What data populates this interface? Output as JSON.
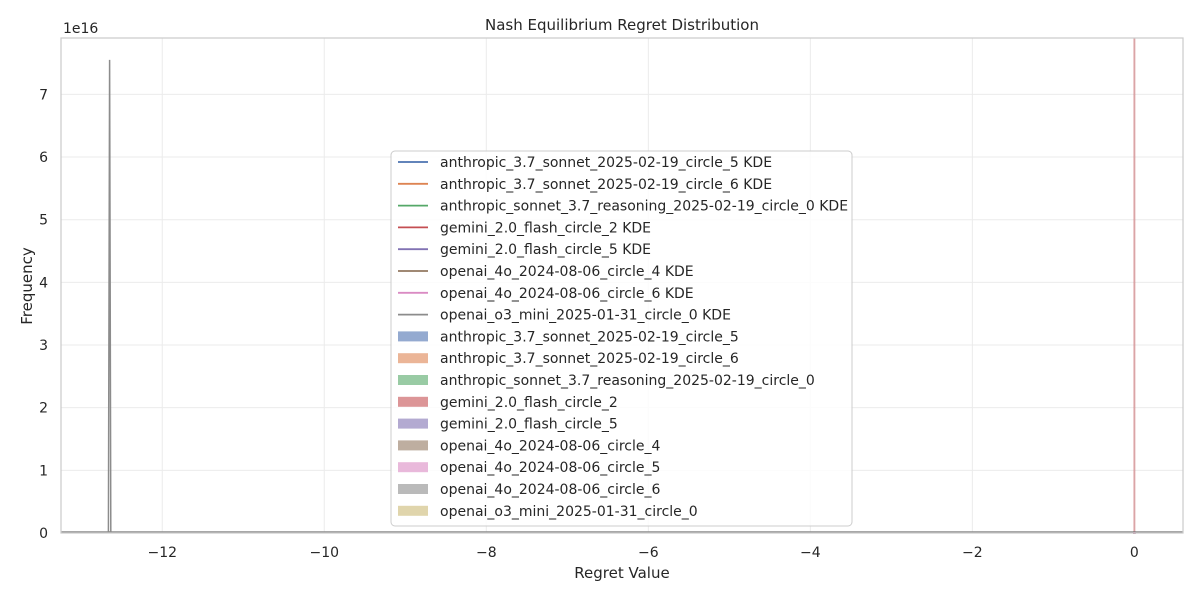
{
  "chart_data": {
    "type": "histogram",
    "title": "Nash Equilibrium Regret Distribution",
    "xlabel": "Regret Value",
    "ylabel": "Frequency",
    "offset_text": "1e16",
    "xlim": [
      -13.25,
      0.6
    ],
    "ylim": [
      0,
      7.9
    ],
    "y_scale_exponent": 16,
    "x_ticks": [
      -12,
      -10,
      -8,
      -6,
      -4,
      -2,
      0
    ],
    "x_tick_labels": [
      "−12",
      "−10",
      "−8",
      "−6",
      "−4",
      "−2",
      "0"
    ],
    "y_ticks": [
      0,
      1,
      2,
      3,
      4,
      5,
      6,
      7
    ],
    "y_tick_labels": [
      "0",
      "1",
      "2",
      "3",
      "4",
      "5",
      "6",
      "7"
    ],
    "grid": true,
    "legend_location": "center",
    "kde_series": [
      {
        "name": "anthropic_3.7_sonnet_2025-02-19_circle_5 KDE",
        "color": "#4c72b0",
        "peak_x": 0,
        "peak_y": 0
      },
      {
        "name": "anthropic_3.7_sonnet_2025-02-19_circle_6 KDE",
        "color": "#dd8452",
        "peak_x": 0,
        "peak_y": 0
      },
      {
        "name": "anthropic_sonnet_3.7_reasoning_2025-02-19_circle_0 KDE",
        "color": "#55a868",
        "peak_x": 0,
        "peak_y": 0
      },
      {
        "name": "gemini_2.0_flash_circle_2 KDE",
        "color": "#c44e52",
        "peak_x": 0,
        "peak_y": 0
      },
      {
        "name": "gemini_2.0_flash_circle_5 KDE",
        "color": "#8172b3",
        "peak_x": 0,
        "peak_y": 0
      },
      {
        "name": "openai_4o_2024-08-06_circle_4 KDE",
        "color": "#937860",
        "peak_x": 0,
        "peak_y": 0
      },
      {
        "name": "openai_4o_2024-08-06_circle_6 KDE",
        "color": "#da8bc3",
        "peak_x": 0,
        "peak_y": 0
      },
      {
        "name": "openai_o3_mini_2025-01-31_circle_0 KDE",
        "color": "#8c8c8c",
        "peak_x": -12.65,
        "peak_y": 7.55
      }
    ],
    "hist_series": [
      {
        "name": "anthropic_3.7_sonnet_2025-02-19_circle_5",
        "color": "#4c72b0",
        "x": 0
      },
      {
        "name": "anthropic_3.7_sonnet_2025-02-19_circle_6",
        "color": "#dd8452",
        "x": 0
      },
      {
        "name": "anthropic_sonnet_3.7_reasoning_2025-02-19_circle_0",
        "color": "#55a868",
        "x": 0
      },
      {
        "name": "gemini_2.0_flash_circle_2",
        "color": "#c44e52",
        "x": 0
      },
      {
        "name": "gemini_2.0_flash_circle_5",
        "color": "#8172b3",
        "x": 0
      },
      {
        "name": "openai_4o_2024-08-06_circle_4",
        "color": "#937860",
        "x": 0
      },
      {
        "name": "openai_4o_2024-08-06_circle_5",
        "color": "#da8bc3",
        "x": 0
      },
      {
        "name": "openai_4o_2024-08-06_circle_6",
        "color": "#8c8c8c",
        "x": 0
      },
      {
        "name": "openai_o3_mini_2025-01-31_circle_0",
        "color": "#ccb974",
        "x": -12.65
      }
    ]
  }
}
